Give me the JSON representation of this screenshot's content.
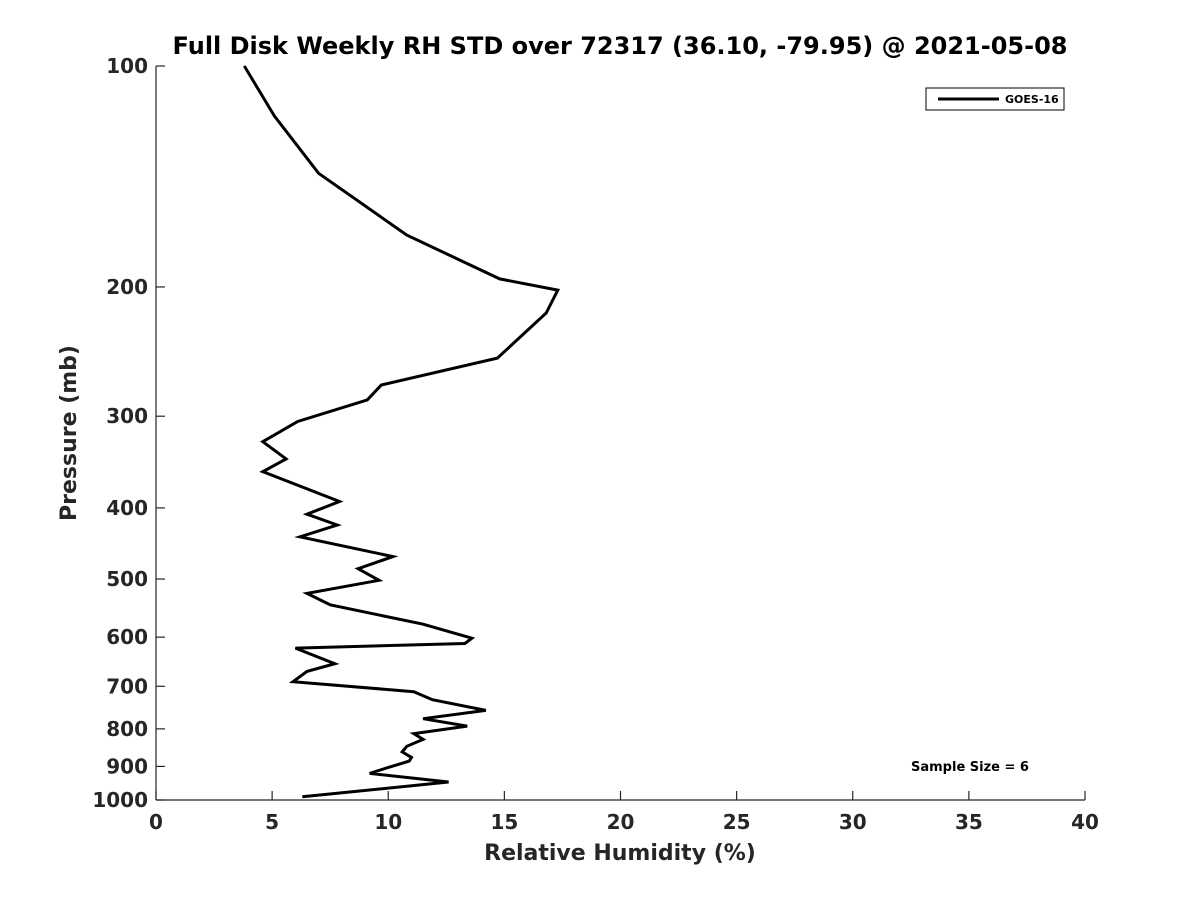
{
  "chart_data": {
    "type": "line",
    "title": "Full Disk Weekly RH STD over 72317 (36.10, -79.95) @ 2021-05-08",
    "xlabel": "Relative Humidity (%)",
    "ylabel": "Pressure (mb)",
    "xlim": [
      0,
      40
    ],
    "ylim": [
      100,
      1000
    ],
    "y_scale": "log",
    "y_reversed": true,
    "x_ticks": [
      "0",
      "5",
      "10",
      "15",
      "20",
      "25",
      "30",
      "35",
      "40"
    ],
    "x_tick_values": [
      0,
      5,
      10,
      15,
      20,
      25,
      30,
      35,
      40
    ],
    "y_ticks": [
      "100",
      "200",
      "300",
      "400",
      "500",
      "600",
      "700",
      "800",
      "900",
      "1000"
    ],
    "y_tick_values": [
      100,
      200,
      300,
      400,
      500,
      600,
      700,
      800,
      900,
      1000
    ],
    "grid": false,
    "legend_position": "top-right",
    "annotation": "Sample Size = 6",
    "series": [
      {
        "name": "GOES-16",
        "color": "#000000",
        "x": [
          3.8,
          5.1,
          7.0,
          10.8,
          14.8,
          17.3,
          16.8,
          14.7,
          9.7,
          9.1,
          6.1,
          4.6,
          5.6,
          4.6,
          7.9,
          6.5,
          7.8,
          6.2,
          10.2,
          8.7,
          9.6,
          6.5,
          7.5,
          11.5,
          13.6,
          13.3,
          6.0,
          7.7,
          6.5,
          5.9,
          11.1,
          11.9,
          14.2,
          11.5,
          13.4,
          11.1,
          11.5,
          10.8,
          10.6,
          11.0,
          10.9,
          9.9,
          9.2,
          12.6,
          6.3
        ],
        "y": [
          100,
          117,
          140,
          170,
          195,
          202,
          217,
          250,
          272,
          285,
          305,
          325,
          343,
          357,
          392,
          408,
          422,
          438,
          466,
          484,
          502,
          523,
          542,
          576,
          602,
          612,
          621,
          652,
          668,
          690,
          712,
          730,
          755,
          775,
          793,
          812,
          827,
          845,
          860,
          875,
          885,
          905,
          920,
          945,
          990
        ]
      }
    ]
  }
}
